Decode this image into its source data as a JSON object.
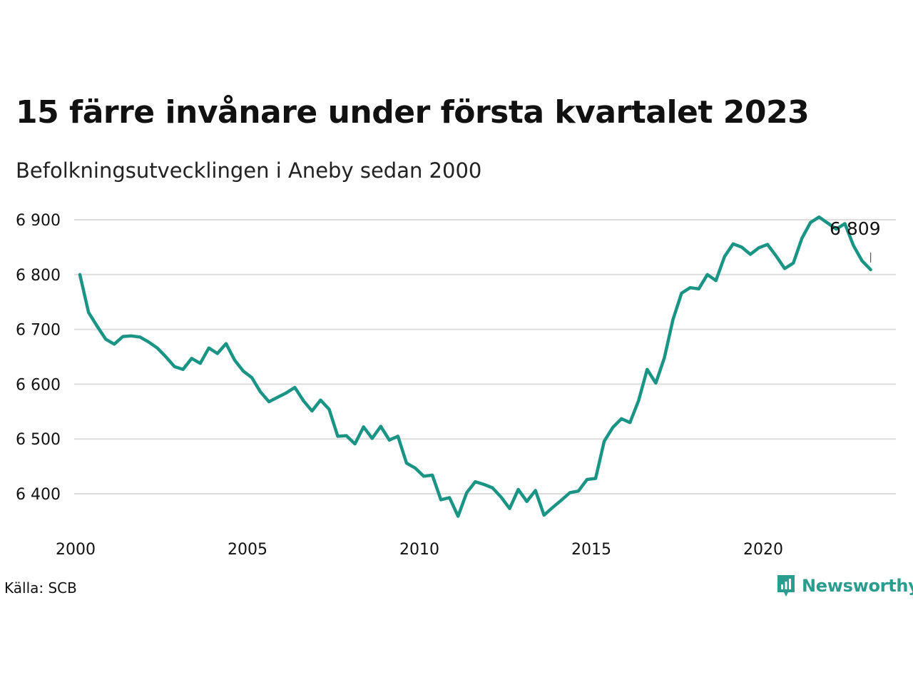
{
  "title": "15 färre invånare under första kvartalet 2023",
  "subtitle": "Befolkningsutvecklingen i Aneby sedan 2000",
  "source": "Källa: SCB",
  "brand": "Newsworthy",
  "colors": {
    "line": "#1a9485",
    "grid": "#dddddd",
    "brand": "#2a9d8f"
  },
  "chart_data": {
    "type": "line",
    "title": "15 färre invånare under första kvartalet 2023",
    "subtitle": "Befolkningsutvecklingen i Aneby sedan 2000",
    "xlabel": "",
    "ylabel": "",
    "x_start_year": 2000,
    "x_step": 0.25,
    "xlim": [
      2000,
      2024
    ],
    "ylim": [
      6350,
      6920
    ],
    "xticks": [
      2000,
      2005,
      2010,
      2015,
      2020
    ],
    "xtick_labels": [
      "2000",
      "2005",
      "2010",
      "2015",
      "2020"
    ],
    "yticks": [
      6400,
      6500,
      6600,
      6700,
      6800,
      6900
    ],
    "ytick_labels": [
      "6 400",
      "6 500",
      "6 600",
      "6 700",
      "6 800",
      "6 900"
    ],
    "grid": true,
    "end_label": "6 809",
    "series": [
      {
        "values": [
          6800,
          6731,
          6706,
          6682,
          6673,
          6687,
          6688,
          6686,
          6677,
          6666,
          6650,
          6632,
          6627,
          6647,
          6638,
          6666,
          6656,
          6674,
          6644,
          6624,
          6612,
          6586,
          6568,
          6576,
          6584,
          6594,
          6570,
          6551,
          6571,
          6554,
          6505,
          6506,
          6491,
          6522,
          6501,
          6523,
          6498,
          6505,
          6456,
          6447,
          6432,
          6434,
          6389,
          6393,
          6359,
          6402,
          6422,
          6417,
          6411,
          6394,
          6373,
          6408,
          6386,
          6406,
          6361,
          6375,
          6388,
          6402,
          6405,
          6426,
          6428,
          6496,
          6521,
          6537,
          6530,
          6570,
          6627,
          6602,
          6648,
          6718,
          6766,
          6776,
          6774,
          6800,
          6789,
          6833,
          6856,
          6850,
          6837,
          6849,
          6855,
          6834,
          6811,
          6821,
          6866,
          6895,
          6905,
          6894,
          6883,
          6893,
          6853,
          6825,
          6809
        ]
      }
    ]
  }
}
